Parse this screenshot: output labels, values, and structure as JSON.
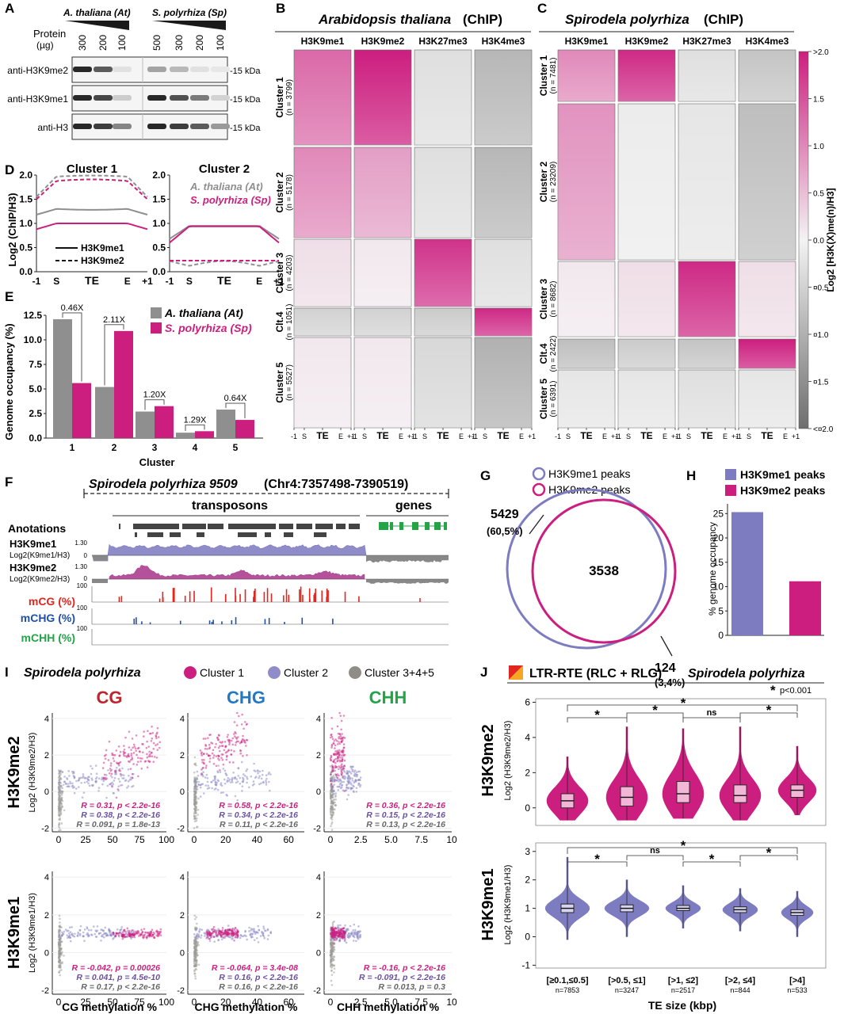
{
  "colors": {
    "at": "#8f8f8f",
    "sp": "#cc1e7f",
    "me1": "#7e7cc0",
    "me2": "#cc1e7f",
    "cg": "#e0261f",
    "chg": "#1f4fa8",
    "chh": "#22a447",
    "dark": "#3a3a3a"
  },
  "panels": {
    "A": "A",
    "B": "B",
    "C": "C",
    "D": "D",
    "E": "E",
    "F": "F",
    "G": "G",
    "H": "H",
    "I": "I",
    "J": "J"
  },
  "panelA": {
    "at_label": "A. thaliana (At)",
    "sp_label": "S. polyrhiza (Sp)",
    "protein_label": "Protein",
    "protein_unit": "(µg)",
    "at_amounts": [
      "300",
      "200",
      "100"
    ],
    "sp_amounts": [
      "500",
      "300",
      "200",
      "100"
    ],
    "blots": [
      {
        "antibody": "anti-H3K9me2",
        "kda": "-15 kDa"
      },
      {
        "antibody": "anti-H3K9me1",
        "kda": "-15 kDa"
      },
      {
        "antibody": "anti-H3",
        "kda": "-15 kDa"
      }
    ]
  },
  "heatmapB": {
    "title_species": "Arabidopsis thaliana",
    "title_suffix": "(ChIP)",
    "marks": [
      "H3K9me1",
      "H3K9me2",
      "H3K27me3",
      "H3K4me3"
    ],
    "clusters": [
      {
        "name": "Cluster 1",
        "n": "(n = 3799)"
      },
      {
        "name": "Cluster 2",
        "n": "(n = 5178)"
      },
      {
        "name": "Cluster 3",
        "n": "(n = 4203)"
      },
      {
        "name": "Clt.4",
        "n": "(n = 1051)"
      },
      {
        "name": "Cluster 5",
        "n": "(n = 5527)"
      }
    ],
    "levels": [
      [
        1.3,
        2.0,
        -0.3,
        -0.9
      ],
      [
        1.0,
        0.8,
        -0.3,
        -0.9
      ],
      [
        0.2,
        0.1,
        1.8,
        -0.3
      ],
      [
        -0.5,
        -0.5,
        -0.6,
        1.9
      ],
      [
        0.1,
        0.1,
        -0.4,
        -1.0
      ]
    ]
  },
  "heatmapC": {
    "title_species": "Spirodela polyrhiza",
    "title_suffix": "(ChIP)",
    "marks": [
      "H3K9me1",
      "H3K9me2",
      "H3K27me3",
      "H3K4me3"
    ],
    "clusters": [
      {
        "name": "Cluster 1",
        "n": "(n = 7481)"
      },
      {
        "name": "Cluster 2",
        "n": "(n = 23209)"
      },
      {
        "name": "Cluster 3",
        "n": "(n = 8682)"
      },
      {
        "name": "Clt.4",
        "n": "(n = 2422)"
      },
      {
        "name": "Cluster 5",
        "n": "(n = 6391)"
      }
    ],
    "levels": [
      [
        1.0,
        1.9,
        -0.3,
        -0.7
      ],
      [
        0.9,
        -0.1,
        -0.2,
        -0.8
      ],
      [
        0.1,
        0.2,
        1.9,
        0.2
      ],
      [
        -0.8,
        -0.6,
        -0.7,
        2.0
      ],
      [
        -0.2,
        -0.2,
        -0.3,
        -0.2
      ]
    ]
  },
  "heatmap_x_ticks": [
    "-1",
    "S",
    "TE",
    "E",
    "+1"
  ],
  "colorbar": {
    "label": "Log2 [H3K(X)me(n)/H3]",
    "ticks": [
      ">2.0",
      "1.5",
      "1.0",
      "0.5",
      "0.0",
      "¤0.5",
      "¤1.0",
      "¤1.5",
      "<¤2.0"
    ]
  },
  "panelD": {
    "ylabel": "Log2 (ChIP/H3)",
    "titles": [
      "Cluster 1",
      "Cluster 2"
    ],
    "x_ticks": [
      "-1",
      "S",
      "TE",
      "E",
      "+1"
    ],
    "y_ticks": [
      "0.0",
      "0.5",
      "1.0",
      "1.5",
      "2.0"
    ],
    "legend_species": [
      "A. thaliana (At)",
      "S. polyrhiza (Sp)"
    ],
    "legend_marks": [
      "H3K9me1",
      "H3K9me2"
    ]
  },
  "panelE": {
    "ylabel": "Genome occupancy (%)",
    "xlabel": "Cluster",
    "legend": [
      "A. thaliana (At)",
      "S. polyrhiza (Sp)"
    ],
    "ratios": [
      "0.46X",
      "2.11X",
      "1.20X",
      "1.29X",
      "0.64X"
    ],
    "y_ticks": [
      "0.0",
      "2.5",
      "5.0",
      "7.5",
      "10.0",
      "12.5"
    ]
  },
  "panelF": {
    "title_species": "Spirodela polyrhiza 9509",
    "title_loc": "(Chr4:7357498-7390519)",
    "transposons": "transposons",
    "genes": "genes",
    "annotations": "Anotations",
    "tracks": [
      {
        "name": "H3K9me1",
        "sub": "Log2(K9me1/H3)",
        "scale": "1.30",
        "zero": "0"
      },
      {
        "name": "H3K9me2",
        "sub": "Log2(K9me2/H3)",
        "scale": "1.30",
        "zero": "0"
      },
      {
        "name": "mCG (%)",
        "scale": "100"
      },
      {
        "name": "mCHG (%)",
        "scale": "100"
      },
      {
        "name": "mCHH (%)",
        "scale": "100"
      }
    ]
  },
  "panelG": {
    "legend": [
      "H3K9me1 peaks",
      "H3K9me2 peaks"
    ],
    "me1_only": "5429",
    "me1_only_pct": "(60,5%)",
    "overlap": "3538",
    "me2_only": "124",
    "me2_only_pct": "(3,4%)"
  },
  "panelH": {
    "legend": [
      "H3K9me1 peaks",
      "H3K9me2 peaks"
    ],
    "ylabel": "% genome occupancy",
    "y_ticks": [
      "0",
      "5",
      "10",
      "15",
      "20",
      "25"
    ]
  },
  "panelI": {
    "species": "Spirodela polyrhiza",
    "legend": [
      "Cluster 1",
      "Cluster 2",
      "Cluster 3+4+5"
    ],
    "contexts": [
      "CG",
      "CHG",
      "CHH"
    ],
    "row_labels": [
      "H3K9me2",
      "H3K9me1"
    ],
    "row_sublabels": [
      "Log2 (H3K9me2/H3)",
      "Log2 (H3K9me1/H3)"
    ],
    "x_ticks": [
      [
        "0",
        "25",
        "50",
        "75",
        "100"
      ],
      [
        "0",
        "20",
        "40",
        "60"
      ],
      [
        "0",
        "2.5",
        "5.0",
        "7.5",
        "10"
      ]
    ],
    "xlabels": [
      "CG  methylation %",
      "CHG methylation %",
      "CHH methylation %"
    ],
    "stats": [
      [
        [
          "R = 0.31, p < 2.2e-16",
          "R = 0.38, p < 2.2e-16",
          "R = 0.091, p = 1.8e-13"
        ],
        [
          "R = 0.58, p < 2.2e-16",
          "R = 0.34, p < 2.2e-16",
          "R = 0.11, p < 2.2e-16"
        ],
        [
          "R = 0.36, p < 2.2e-16",
          "R = 0.15, p < 2.2e-16",
          "R = 0.13, p < 2.2e-16"
        ]
      ],
      [
        [
          "R = -0.042, p = 0.00026",
          "R = 0.041, p = 4.5e-10",
          "R = 0.17,  p < 2.2e-16"
        ],
        [
          "R = -0.064, p = 3.4e-08",
          "R = 0.16,  p < 2.2e-16",
          "R = 0.16,  p < 2.2e-16"
        ],
        [
          "R = -0.16,  p < 2.2e-16",
          "R = -0.091, p < 2.2e-16",
          "R = 0.013, p = 0.3"
        ]
      ]
    ]
  },
  "panelJ": {
    "title_main": "LTR-RTE (RLC + RLG)",
    "title_species": "Spirodela polyrhiza",
    "sig_note": "p<0.001",
    "sig_star": "*",
    "xlabel": "TE size (kbp)",
    "categories": [
      "[≥0.1,≤0.5]",
      "[>0.5, ≤1]",
      "[>1, ≤2]",
      "[>2, ≤4]",
      "[>4]"
    ],
    "n": [
      "n=7853",
      "n=3247",
      "n=2517",
      "n=844",
      "n=533"
    ],
    "me2": {
      "label": "H3K9me2",
      "sub": "Log2 (H3K9me2/H3)",
      "y_ticks": [
        "0",
        "2",
        "4",
        "6"
      ],
      "medians": [
        0.4,
        0.6,
        0.8,
        0.7,
        1.0
      ],
      "q1": [
        0.0,
        0.1,
        0.3,
        0.3,
        0.6
      ],
      "q3": [
        0.8,
        1.2,
        1.5,
        1.3,
        1.3
      ],
      "sig": [
        "*",
        "*",
        "ns",
        "*",
        "*"
      ]
    },
    "me1": {
      "label": "H3K9me1",
      "sub": "Log2 (H3K9me1/H3)",
      "y_ticks": [
        "-1",
        "0",
        "1",
        "2",
        "3"
      ],
      "medians": [
        1.0,
        1.0,
        1.0,
        0.95,
        0.85
      ],
      "q1": [
        0.85,
        0.88,
        0.92,
        0.85,
        0.75
      ],
      "q3": [
        1.15,
        1.12,
        1.1,
        1.05,
        0.95
      ],
      "sig": [
        "*",
        "ns",
        "*",
        "*",
        "*"
      ]
    }
  }
}
